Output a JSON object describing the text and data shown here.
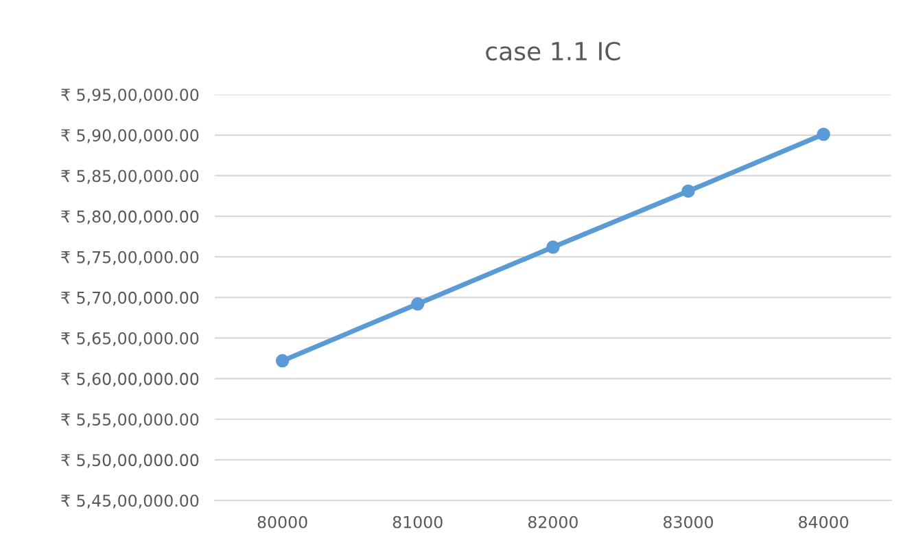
{
  "chart_data": {
    "type": "line",
    "title": "case 1.1 IC",
    "categories": [
      "80000",
      "81000",
      "82000",
      "83000",
      "84000"
    ],
    "series": [
      {
        "color": "#5b9bd5",
        "values": [
          56220000,
          56920000,
          57620000,
          58310000,
          59010000
        ]
      }
    ],
    "ylim": [
      54500000,
      59500000
    ],
    "yticks": [
      {
        "value": 54500000,
        "label": "₹ 5,45,00,000.00"
      },
      {
        "value": 55000000,
        "label": "₹ 5,50,00,000.00"
      },
      {
        "value": 55500000,
        "label": "₹ 5,55,00,000.00"
      },
      {
        "value": 56000000,
        "label": "₹ 5,60,00,000.00"
      },
      {
        "value": 56500000,
        "label": "₹ 5,65,00,000.00"
      },
      {
        "value": 57000000,
        "label": "₹ 5,70,00,000.00"
      },
      {
        "value": 57500000,
        "label": "₹ 5,75,00,000.00"
      },
      {
        "value": 58000000,
        "label": "₹ 5,80,00,000.00"
      },
      {
        "value": 58500000,
        "label": "₹ 5,85,00,000.00"
      },
      {
        "value": 59000000,
        "label": "₹ 5,90,00,000.00"
      },
      {
        "value": 59500000,
        "label": "₹ 5,95,00,000.00"
      }
    ],
    "grid": "y",
    "marker": "circle",
    "line_style": "solid"
  }
}
